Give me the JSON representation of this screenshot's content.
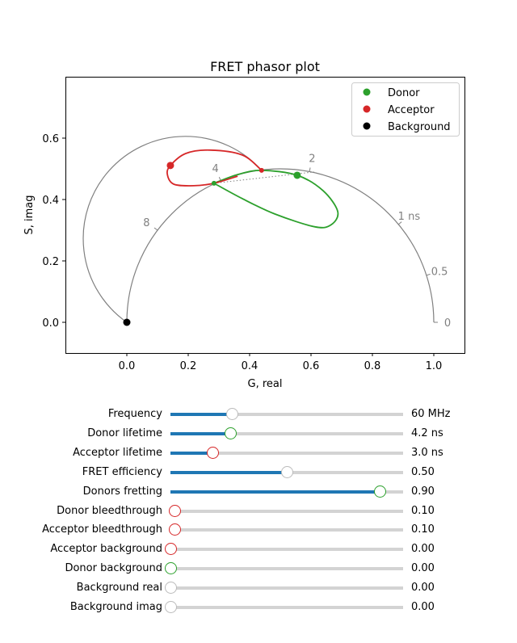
{
  "chart_data": {
    "type": "scatter",
    "title": "FRET phasor plot",
    "xlabel": "G, real",
    "ylabel": "S, imag",
    "xlim": [
      -0.2,
      1.1
    ],
    "ylim": [
      -0.1,
      0.8
    ],
    "xticks": [
      "0.0",
      "0.2",
      "0.4",
      "0.6",
      "0.8",
      "1.0"
    ],
    "yticks": [
      "0.0",
      "0.2",
      "0.4",
      "0.6"
    ],
    "grid": false,
    "legend": {
      "placement": "top-right",
      "entries": [
        {
          "name": "Donor",
          "color": "#2ca02c"
        },
        {
          "name": "Acceptor",
          "color": "#d62728"
        },
        {
          "name": "Background",
          "color": "#000000"
        }
      ]
    },
    "points": [
      {
        "name": "Donor",
        "g": 0.555,
        "s": 0.479,
        "color": "#2ca02c"
      },
      {
        "name": "Acceptor",
        "g": 0.142,
        "s": 0.511,
        "color": "#d62728"
      },
      {
        "name": "Background",
        "g": 0.0,
        "s": 0.0,
        "color": "#000000"
      }
    ],
    "lifetime_labels": [
      {
        "text": "0",
        "g": 1.0,
        "s": 0.0
      },
      {
        "text": "0.5",
        "g": 0.976,
        "s": 0.153
      },
      {
        "text": "1 ns",
        "g": 0.885,
        "s": 0.319
      },
      {
        "text": "2",
        "g": 0.595,
        "s": 0.491
      },
      {
        "text": "4",
        "g": 0.306,
        "s": 0.461
      },
      {
        "text": "8",
        "g": 0.1,
        "s": 0.3
      }
    ],
    "acceptor_curve": [
      [
        0.439,
        0.495
      ],
      [
        0.376,
        0.545
      ],
      [
        0.271,
        0.561
      ],
      [
        0.192,
        0.55
      ],
      [
        0.142,
        0.511
      ],
      [
        0.132,
        0.482
      ],
      [
        0.153,
        0.45
      ],
      [
        0.218,
        0.445
      ],
      [
        0.284,
        0.453
      ],
      [
        0.361,
        0.476
      ]
    ],
    "donor_curve": [
      [
        0.284,
        0.453
      ],
      [
        0.363,
        0.482
      ],
      [
        0.439,
        0.495
      ],
      [
        0.555,
        0.479
      ],
      [
        0.639,
        0.429
      ],
      [
        0.687,
        0.361
      ],
      [
        0.666,
        0.318
      ],
      [
        0.613,
        0.311
      ],
      [
        0.482,
        0.353
      ],
      [
        0.376,
        0.403
      ],
      [
        0.284,
        0.453
      ]
    ],
    "fret_line": [
      [
        0.284,
        0.453
      ],
      [
        0.61,
        0.49
      ]
    ],
    "quench_circle": {
      "center": [
        0.223,
        0.247
      ],
      "radius": 0.333
    }
  },
  "sliders": [
    {
      "label": "Frequency",
      "value": "60 MHz",
      "fraction": 0.264,
      "knob": "#bbbbbb"
    },
    {
      "label": "Donor lifetime",
      "value": "4.2 ns",
      "fraction": 0.257,
      "knob": "#2ca02c"
    },
    {
      "label": "Acceptor lifetime",
      "value": "3.0 ns",
      "fraction": 0.184,
      "knob": "#d62728"
    },
    {
      "label": "FRET efficiency",
      "value": "0.50",
      "fraction": 0.5,
      "knob": "#bbbbbb"
    },
    {
      "label": "Donors fretting",
      "value": "0.90",
      "fraction": 0.9,
      "knob": "#2ca02c"
    },
    {
      "label": "Donor bleedthrough",
      "value": "0.10",
      "fraction": 0.02,
      "knob": "#d62728"
    },
    {
      "label": "Acceptor bleedthrough",
      "value": "0.10",
      "fraction": 0.02,
      "knob": "#d62728"
    },
    {
      "label": "Acceptor background",
      "value": "0.00",
      "fraction": 0,
      "knob": "#d62728"
    },
    {
      "label": "Donor background",
      "value": "0.00",
      "fraction": 0,
      "knob": "#2ca02c"
    },
    {
      "label": "Background real",
      "value": "0.00",
      "fraction": 0,
      "knob": "#bbbbbb"
    },
    {
      "label": "Background imag",
      "value": "0.00",
      "fraction": 0,
      "knob": "#bbbbbb"
    }
  ]
}
